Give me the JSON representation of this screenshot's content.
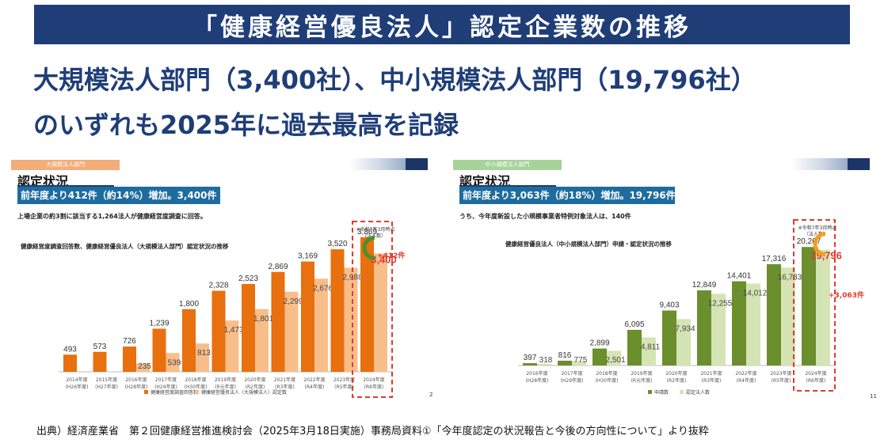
{
  "title": "「健康経営優良法人」認定企業数の推移",
  "headline_line1": "大規模法人部門（3,400社）、中小規模法人部門（19,796社）",
  "headline_line2": "のいずれも2025年に過去最高を記録",
  "footer": "出典）経済産業省　第２回健康経営推進検討会（2025年3月18日実施）事務局資料①「今年度認定の状況報告と今後の方向性について」より抜粋",
  "colors": {
    "navy": "#1f3e78",
    "large_dark": "#e8700f",
    "large_light": "#f8be8a",
    "sme_dark": "#6a8f2c",
    "sme_light": "#d5e4b5",
    "highlight": "#e23a2f"
  },
  "left": {
    "dept": "大規模法人部門",
    "status_title": "認定状況",
    "summary": "前年度より412件（約14%）増加。3,400件",
    "note": "上場企業の約3割に該当する1,264法人が健康経営度調査に回答。",
    "chart_title": "健康経営度調査回答数、健康経営優良法人（大規模法人部門）認定状況の推移",
    "page": "2",
    "annotation_date": "※令和7年3月時点",
    "annotation_sub": "（法人数）",
    "increase": "+412件",
    "highlight_value": "3,400"
  },
  "right": {
    "dept": "中小規模法人部門",
    "status_title": "認定状況",
    "summary": "前年度より3,063件（約18%）増加。19,796件",
    "note": "うち、今年度新設した小規模事業者特例対象法人は、140件",
    "chart_title": "健康経営優良法人（中小規模法人部門）申請・認定状況の推移",
    "page": "11",
    "annotation_date": "※令和7年3月時点",
    "annotation_sub": "（法人数）",
    "increase": "+3,063件",
    "highlight_value": "19,796"
  },
  "chart_data": [
    {
      "type": "bar",
      "categories": [
        [
          "2014年度",
          "(H26年度)"
        ],
        [
          "2015年度",
          "(H27年度)"
        ],
        [
          "2016年度",
          "(H28年度)"
        ],
        [
          "2017年度",
          "(H29年度)"
        ],
        [
          "2018年度",
          "(H30年度)"
        ],
        [
          "2019年度",
          "(R元年度)"
        ],
        [
          "2020年度",
          "(R2年度)"
        ],
        [
          "2021年度",
          "(R3年度)"
        ],
        [
          "2022年度",
          "(R4年度)"
        ],
        [
          "2023年度",
          "(R5年度)"
        ],
        [
          "2024年度",
          "(R6年度)"
        ]
      ],
      "series": [
        {
          "name": "健康経営度調査回答数",
          "values": [
            493,
            573,
            726,
            1239,
            1800,
            2328,
            2523,
            2869,
            3169,
            3520,
            3869
          ],
          "labels": [
            "493",
            "573",
            "726",
            "1,239",
            "1,800",
            "2,328",
            "2,523",
            "2,869",
            "3,169",
            "3,520",
            "3,869"
          ]
        },
        {
          "name": "健康経営優良法人（大規模法人）認定数",
          "values": [
            null,
            null,
            235,
            539,
            813,
            1473,
            1801,
            2299,
            2676,
            2988,
            3400
          ],
          "labels": [
            "",
            "",
            "235",
            "539",
            "813",
            "1,473",
            "1,801",
            "2,299",
            "2,676",
            "2,988",
            "3,400"
          ]
        }
      ],
      "ylim": [
        0,
        4000
      ]
    },
    {
      "type": "bar",
      "categories": [
        [
          "2016年度",
          "(H28年度)"
        ],
        [
          "2017年度",
          "(H29年度)"
        ],
        [
          "2018年度",
          "(H30年度)"
        ],
        [
          "2019年度",
          "(R元年度)"
        ],
        [
          "2020年度",
          "(R2年度)"
        ],
        [
          "2021年度",
          "(R3年度)"
        ],
        [
          "2022年度",
          "(R4年度)"
        ],
        [
          "2023年度",
          "(R5年度)"
        ],
        [
          "2024年度",
          "(R6年度)"
        ]
      ],
      "series": [
        {
          "name": "申請数",
          "values": [
            397,
            816,
            2899,
            6095,
            9403,
            12849,
            14401,
            17316,
            20267
          ],
          "labels": [
            "397",
            "816",
            "2,899",
            "6,095",
            "9,403",
            "12,849",
            "14,401",
            "17,316",
            "20,267"
          ]
        },
        {
          "name": "認定法人数",
          "values": [
            318,
            775,
            2501,
            4811,
            7934,
            12255,
            14012,
            16733,
            19796
          ],
          "labels": [
            "318",
            "775",
            "2,501",
            "4,811",
            "7,934",
            "12,255",
            "14,012",
            "16,733",
            "19,796"
          ]
        }
      ],
      "ylim": [
        0,
        23000
      ]
    }
  ]
}
